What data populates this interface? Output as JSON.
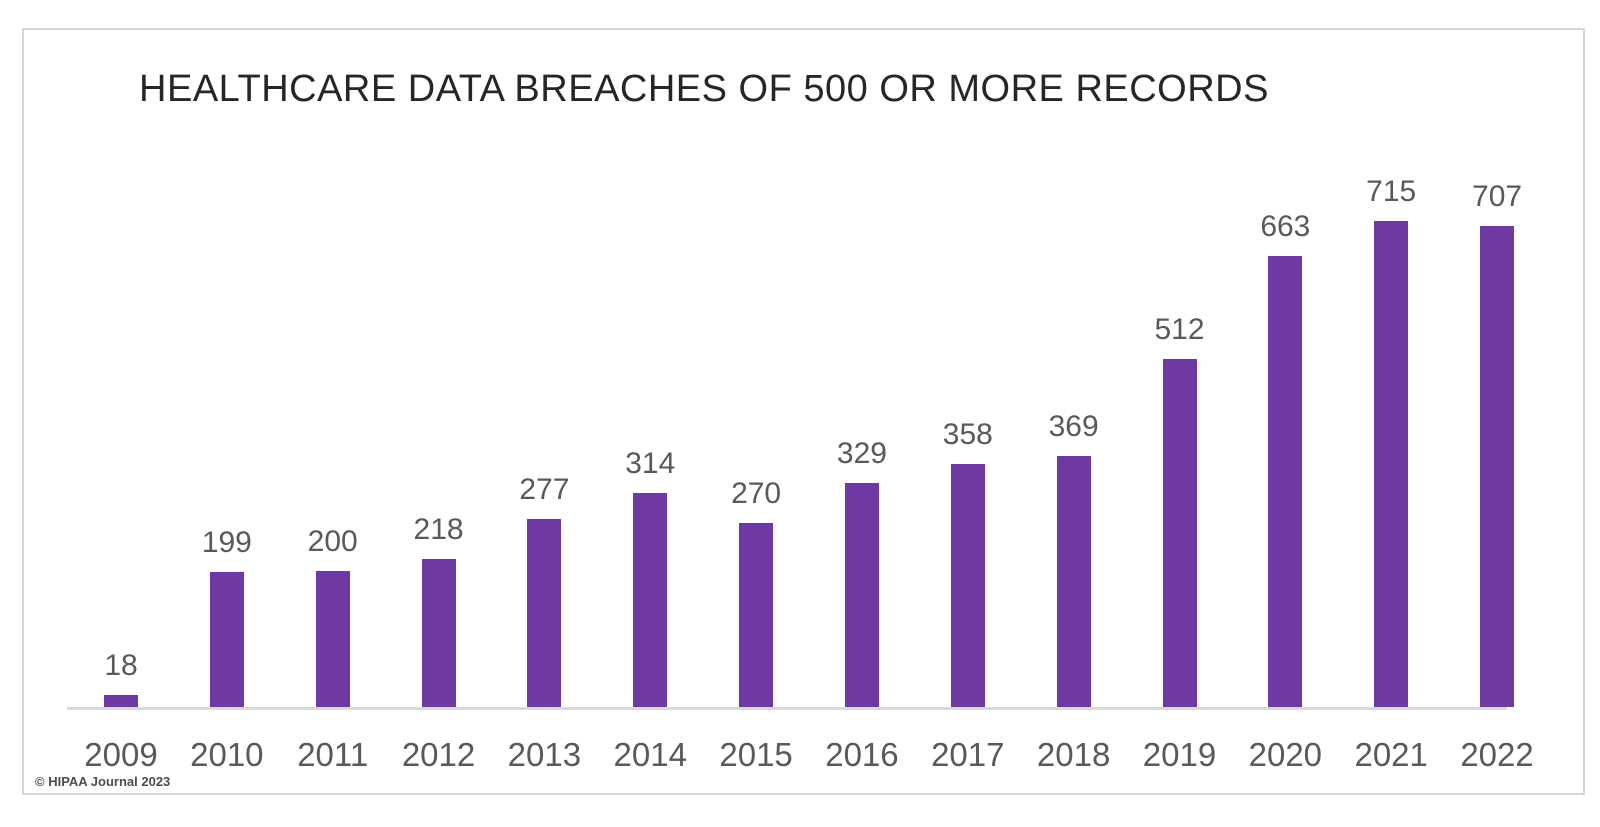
{
  "footer": {
    "credit": "© HIPAA Journal 2023"
  },
  "colors": {
    "bar": "#6e3aa2",
    "value_label": "#595959",
    "tick_label": "#595959",
    "title": "#262626",
    "axis_line": "#d9d9d9",
    "frame_border": "#d6d6d6",
    "credit": "#4d4d4d",
    "background": "#ffffff"
  },
  "chart_data": {
    "type": "bar",
    "title": "HEALTHCARE DATA BREACHES OF 500 OR MORE RECORDS",
    "categories": [
      "2009",
      "2010",
      "2011",
      "2012",
      "2013",
      "2014",
      "2015",
      "2016",
      "2017",
      "2018",
      "2019",
      "2020",
      "2021",
      "2022"
    ],
    "values": [
      18,
      199,
      200,
      218,
      277,
      314,
      270,
      329,
      358,
      369,
      512,
      663,
      715,
      707
    ],
    "xlabel": "",
    "ylabel": "",
    "ylim": [
      0,
      750
    ],
    "gridlines": false,
    "legend_position": "none",
    "data_labels": true,
    "bar_color": "#6e3aa2"
  }
}
